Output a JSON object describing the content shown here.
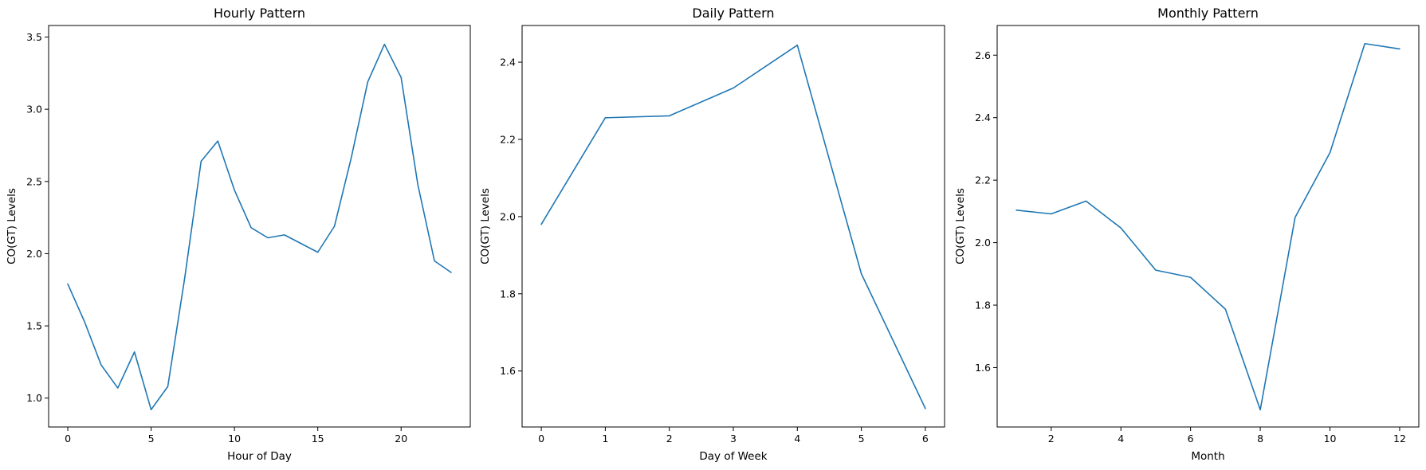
{
  "chart_data": [
    {
      "type": "line",
      "title": "Hourly Pattern",
      "xlabel": "Hour of Day",
      "ylabel": "CO(GT) Levels",
      "xlim": [
        -1.15,
        24.15
      ],
      "ylim": [
        0.8,
        3.58
      ],
      "xticks": [
        0,
        5,
        10,
        15,
        20
      ],
      "yticks": [
        1.0,
        1.5,
        2.0,
        2.5,
        3.0,
        3.5
      ],
      "grid": false,
      "color": "#1f77b4",
      "x": [
        0,
        1,
        2,
        3,
        4,
        5,
        6,
        7,
        8,
        9,
        10,
        11,
        12,
        13,
        14,
        15,
        16,
        17,
        18,
        19,
        20,
        21,
        22,
        23
      ],
      "y": [
        1.79,
        1.53,
        1.23,
        1.07,
        1.32,
        0.92,
        1.08,
        1.82,
        2.64,
        2.78,
        2.44,
        2.18,
        2.11,
        2.13,
        2.07,
        2.01,
        2.19,
        2.66,
        3.19,
        3.45,
        3.22,
        2.48,
        1.95,
        1.87
      ]
    },
    {
      "type": "line",
      "title": "Daily Pattern",
      "xlabel": "Day of Week",
      "ylabel": "CO(GT) Levels",
      "xlim": [
        -0.3,
        6.3
      ],
      "ylim": [
        1.455,
        2.495
      ],
      "xticks": [
        0,
        1,
        2,
        3,
        4,
        5,
        6
      ],
      "yticks": [
        1.6,
        1.8,
        2.0,
        2.2,
        2.4
      ],
      "grid": false,
      "color": "#1f77b4",
      "x": [
        0,
        1,
        2,
        3,
        4,
        5,
        6
      ],
      "y": [
        1.98,
        2.256,
        2.261,
        2.333,
        2.444,
        1.852,
        1.503
      ]
    },
    {
      "type": "line",
      "title": "Monthly Pattern",
      "xlabel": "Month",
      "ylabel": "CO(GT) Levels",
      "xlim": [
        0.45,
        12.55
      ],
      "ylim": [
        1.41,
        2.695
      ],
      "xticks": [
        2,
        4,
        6,
        8,
        10,
        12
      ],
      "yticks": [
        1.6,
        1.8,
        2.0,
        2.2,
        2.4,
        2.6
      ],
      "grid": false,
      "color": "#1f77b4",
      "x": [
        1,
        2,
        3,
        4,
        5,
        6,
        7,
        8,
        9,
        10,
        11,
        12
      ],
      "y": [
        2.104,
        2.092,
        2.133,
        2.047,
        1.912,
        1.889,
        1.787,
        1.465,
        2.081,
        2.288,
        2.637,
        2.62
      ]
    }
  ]
}
